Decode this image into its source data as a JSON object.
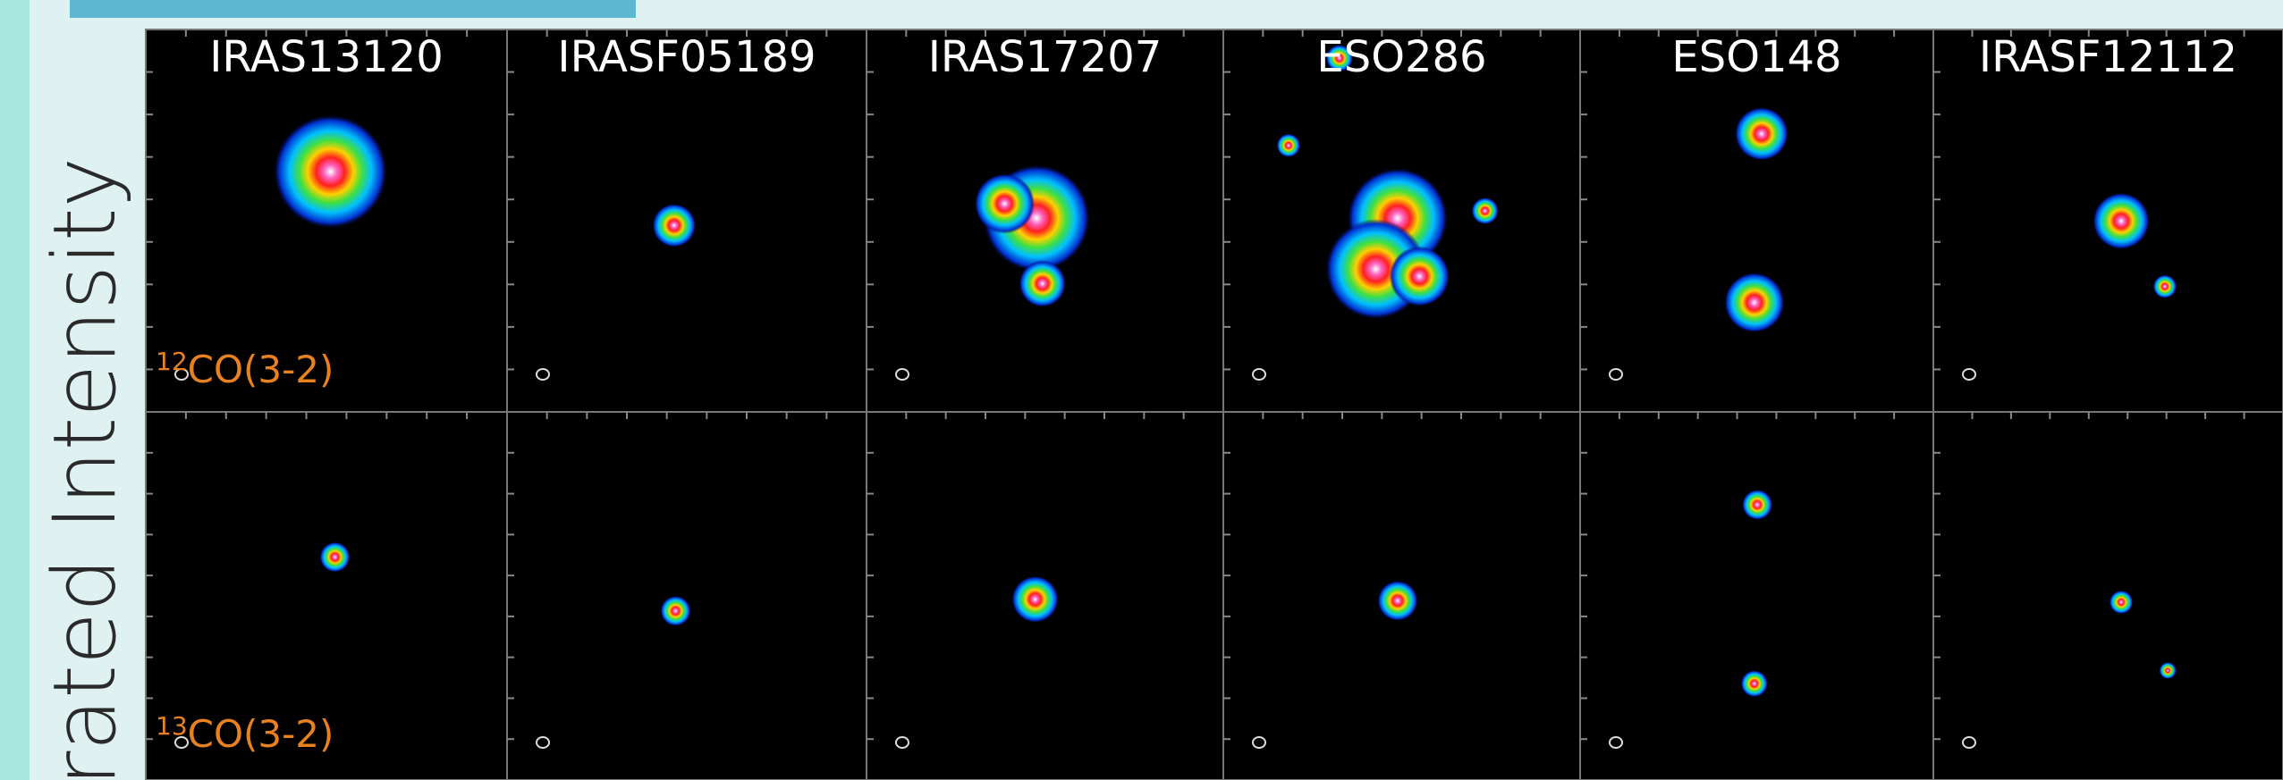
{
  "vertical_label": "rated Intensity",
  "columns": [
    "IRAS13120",
    "IRASF05189",
    "IRAS17207",
    "ESO286",
    "ESO148",
    "IRASF12112"
  ],
  "rows": [
    {
      "superscript": "12",
      "label": "CO(3-2)"
    },
    {
      "superscript": "13",
      "label": "CO(3-2)"
    }
  ]
}
